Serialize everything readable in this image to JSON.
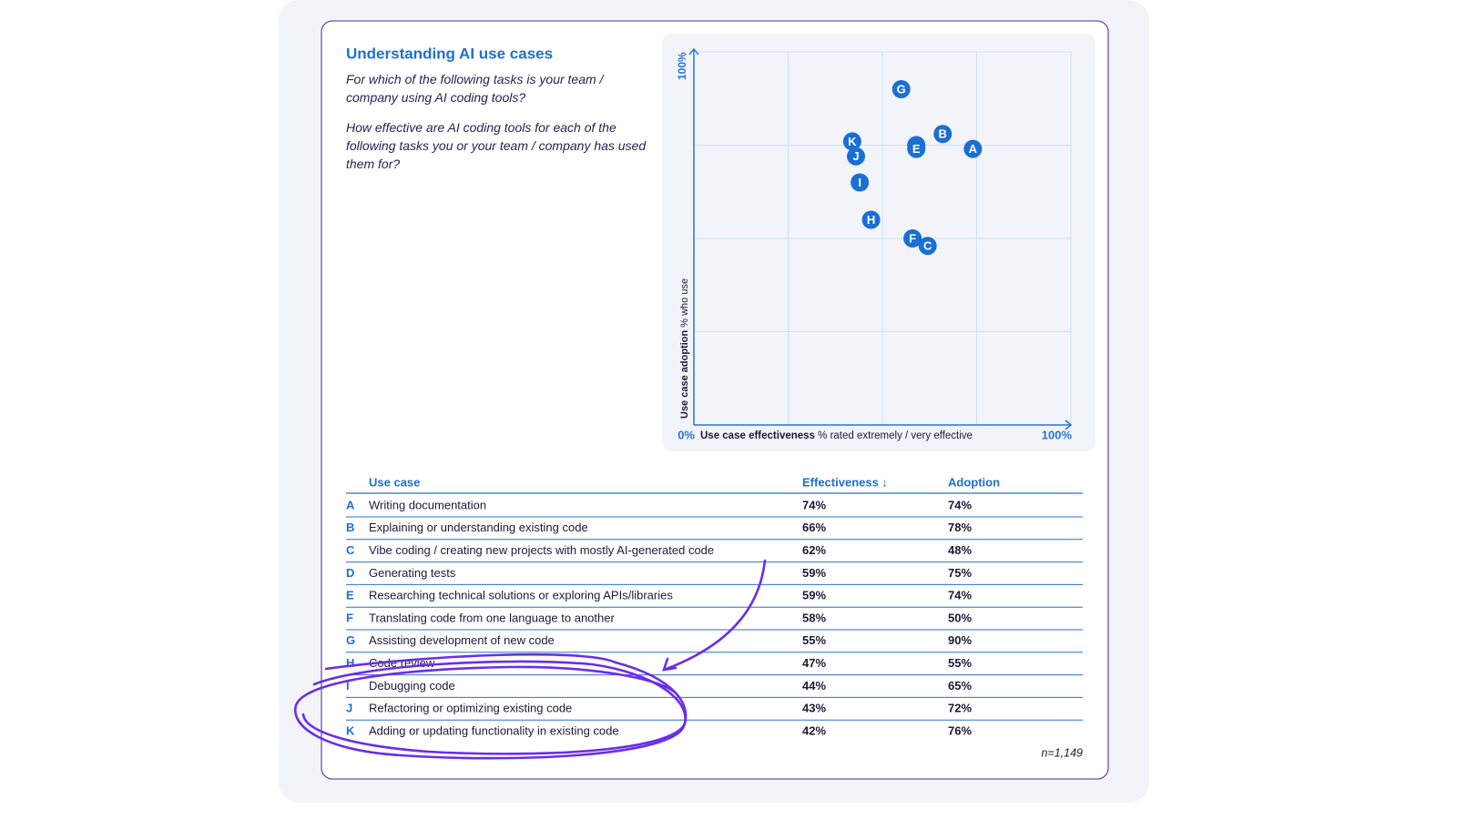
{
  "chart_data": {
    "type": "scatter",
    "title": "Understanding AI use cases",
    "questions": [
      "For which of the following tasks is your team / company using AI coding tools?",
      "How effective are AI coding tools for each of the following tasks you or your team / company has used them for?"
    ],
    "xlabel": "Use case effectiveness",
    "xlabel_note": "% rated extremely / very effective",
    "ylabel": "Use case adoption",
    "ylabel_note": "% who use",
    "xlim": [
      0,
      100
    ],
    "ylim": [
      0,
      100
    ],
    "xticks": [
      {
        "value": 0,
        "label": "0%"
      },
      {
        "value": 25,
        "label": null
      },
      {
        "value": 50,
        "label": null
      },
      {
        "value": 75,
        "label": null
      },
      {
        "value": 100,
        "label": "100%"
      }
    ],
    "yticks": [
      {
        "value": 0,
        "label": null
      },
      {
        "value": 25,
        "label": null
      },
      {
        "value": 50,
        "label": null
      },
      {
        "value": 75,
        "label": null
      },
      {
        "value": 100,
        "label": "100%"
      }
    ],
    "grid": true,
    "color": "#1a6fd4",
    "columns": [
      "Use case",
      "Effectiveness ↓",
      "Adoption"
    ],
    "labels": [
      "A",
      "B",
      "C",
      "D",
      "E",
      "F",
      "G",
      "H",
      "I",
      "J",
      "K"
    ],
    "categories": [
      "Writing documentation",
      "Explaining or understanding existing code",
      "Vibe coding / creating new projects with mostly AI-generated code",
      "Generating tests",
      "Researching technical solutions or exploring APIs/libraries",
      "Translating code from one language to another",
      "Assisting development of new code",
      "Code review",
      "Debugging code",
      "Refactoring or optimizing existing code",
      "Adding or updating functionality in existing code"
    ],
    "x": [
      74,
      66,
      62,
      59,
      59,
      58,
      55,
      47,
      44,
      43,
      42
    ],
    "x_labels": [
      "74%",
      "66%",
      "62%",
      "59%",
      "59%",
      "58%",
      "55%",
      "47%",
      "44%",
      "43%",
      "42%"
    ],
    "values": [
      74,
      78,
      48,
      75,
      74,
      50,
      90,
      55,
      65,
      72,
      76
    ],
    "value_labels": [
      "74%",
      "78%",
      "48%",
      "75%",
      "74%",
      "50%",
      "90%",
      "55%",
      "65%",
      "72%",
      "76%"
    ],
    "note": "n=1,149"
  }
}
